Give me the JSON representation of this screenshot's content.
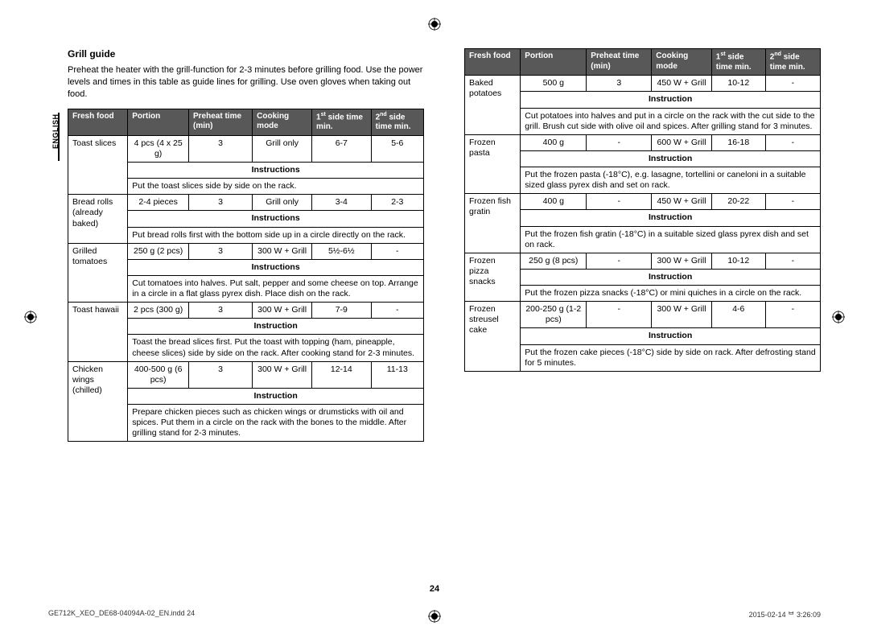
{
  "title": "Grill guide",
  "intro": "Preheat the heater with the grill-function for 2-3 minutes before grilling food. Use the power levels and times in this table as guide lines for grilling. Use oven gloves when taking out food.",
  "sidetab": "ENGLISH",
  "pagenum": "24",
  "footer_left": "GE712K_XEO_DE68-04094A-02_EN.indd   24",
  "footer_right": "2015-02-14   ᄇ 3:26:09",
  "headers": {
    "food": "Fresh food",
    "portion": "Portion",
    "preheat": "Preheat time (min)",
    "mode": "Cooking mode",
    "side1_pre": "1",
    "side1_sup": "st",
    "side1_post": " side time min.",
    "side2_pre": "2",
    "side2_sup": "nd",
    "side2_post": " side time min."
  },
  "left_rows": [
    {
      "food": "Toast slices",
      "portion": "4 pcs (4 x 25 g)",
      "preheat": "3",
      "mode": "Grill only",
      "s1": "6-7",
      "s2": "5-6",
      "ilabel": "Instructions",
      "instr": "Put the toast slices side by side on the rack."
    },
    {
      "food": "Bread rolls (already baked)",
      "portion": "2-4 pieces",
      "preheat": "3",
      "mode": "Grill only",
      "s1": "3-4",
      "s2": "2-3",
      "ilabel": "Instructions",
      "instr": "Put bread rolls first with the bottom side up in a circle directly on the rack."
    },
    {
      "food": "Grilled tomatoes",
      "portion": "250 g (2 pcs)",
      "preheat": "3",
      "mode": "300 W + Grill",
      "s1": "5½-6½",
      "s2": "-",
      "ilabel": "Instructions",
      "instr": "Cut tomatoes into halves. Put salt, pepper and some cheese on top. Arrange in a circle in a flat glass pyrex dish. Place dish on the rack."
    },
    {
      "food": "Toast hawaii",
      "portion": "2 pcs (300 g)",
      "preheat": "3",
      "mode": "300 W + Grill",
      "s1": "7-9",
      "s2": "-",
      "ilabel": "Instruction",
      "instr": "Toast the bread slices first. Put the toast with topping (ham, pineapple, cheese slices) side by side on the rack. After cooking stand for 2-3 minutes."
    },
    {
      "food": "Chicken wings (chilled)",
      "portion": "400-500 g (6 pcs)",
      "preheat": "3",
      "mode": "300 W + Grill",
      "s1": "12-14",
      "s2": "11-13",
      "ilabel": "Instruction",
      "instr": "Prepare chicken pieces such as chicken wings or drumsticks with oil and spices. Put them in a circle on the rack with the bones to the middle. After grilling stand for 2-3 minutes."
    }
  ],
  "right_rows": [
    {
      "food": "Baked potatoes",
      "portion": "500 g",
      "preheat": "3",
      "mode": "450 W + Grill",
      "s1": "10-12",
      "s2": "-",
      "ilabel": "Instruction",
      "instr": "Cut potatoes into halves and put in a circle on the rack with the cut side to the grill. Brush cut side with olive oil and spices. After grilling stand for 3 minutes."
    },
    {
      "food": "Frozen pasta",
      "portion": "400 g",
      "preheat": "-",
      "mode": "600 W + Grill",
      "s1": "16-18",
      "s2": "-",
      "ilabel": "Instruction",
      "instr": "Put the frozen pasta (-18°C), e.g. lasagne, tortellini or caneloni in a suitable sized glass pyrex dish and set on rack."
    },
    {
      "food": "Frozen fish gratin",
      "portion": "400 g",
      "preheat": "-",
      "mode": "450 W + Grill",
      "s1": "20-22",
      "s2": "-",
      "ilabel": "Instruction",
      "instr": "Put the frozen fish gratin (-18°C) in a suitable sized glass pyrex dish and set on rack."
    },
    {
      "food": "Frozen pizza snacks",
      "portion": "250 g (8 pcs)",
      "preheat": "-",
      "mode": "300 W + Grill",
      "s1": "10-12",
      "s2": "-",
      "ilabel": "Instruction",
      "instr": "Put the frozen pizza snacks (-18°C) or mini quiches in a circle on the rack."
    },
    {
      "food": "Frozen streusel cake",
      "portion": "200-250 g (1-2 pcs)",
      "preheat": "-",
      "mode": "300 W + Grill",
      "s1": "4-6",
      "s2": "-",
      "ilabel": "Instruction",
      "instr": "Put the frozen cake pieces (-18°C) side by side on rack. After defrosting stand for 5 minutes."
    }
  ]
}
